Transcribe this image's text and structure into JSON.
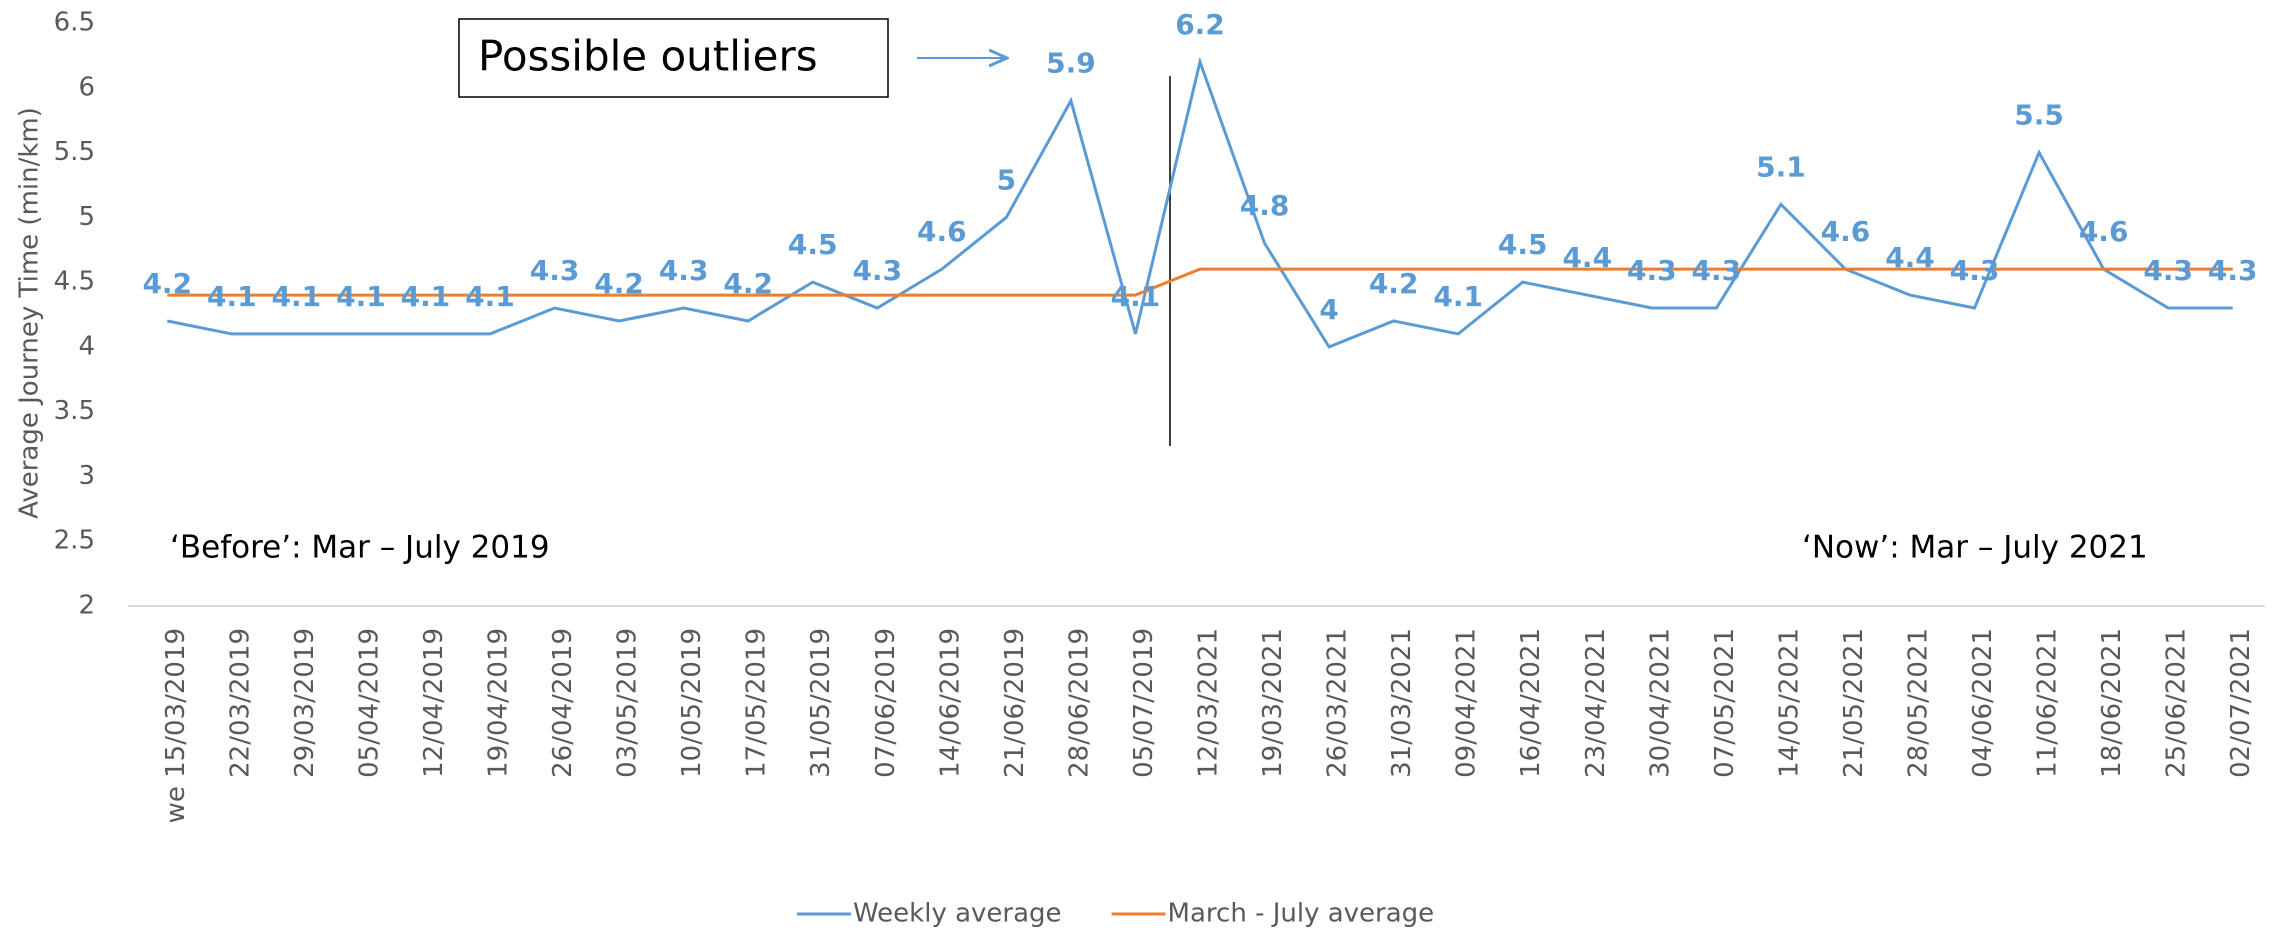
{
  "chart_data": {
    "type": "line",
    "y_label": "Average Journey Time  (min/km)",
    "categories": [
      "we 15/03/2019",
      "22/03/2019",
      "29/03/2019",
      "05/04/2019",
      "12/04/2019",
      "19/04/2019",
      "26/04/2019",
      "03/05/2019",
      "10/05/2019",
      "17/05/2019",
      "31/05/2019",
      "07/06/2019",
      "14/06/2019",
      "21/06/2019",
      "28/06/2019",
      "05/07/2019",
      "12/03/2021",
      "19/03/2021",
      "26/03/2021",
      "31/03/2021",
      "09/04/2021",
      "16/04/2021",
      "23/04/2021",
      "30/04/2021",
      "07/05/2021",
      "14/05/2021",
      "21/05/2021",
      "28/05/2021",
      "04/06/2021",
      "11/06/2021",
      "18/06/2021",
      "25/06/2021",
      "02/07/2021"
    ],
    "series": [
      {
        "name": "Weekly average",
        "color": "#5b9bd5",
        "data_labels": true,
        "values": [
          4.2,
          4.1,
          4.1,
          4.1,
          4.1,
          4.1,
          4.3,
          4.2,
          4.3,
          4.2,
          4.5,
          4.3,
          4.6,
          5,
          5.9,
          4.1,
          6.2,
          4.8,
          4,
          4.2,
          4.1,
          4.5,
          4.4,
          4.3,
          4.3,
          5.1,
          4.6,
          4.4,
          4.3,
          5.5,
          4.6,
          4.3,
          4.3
        ]
      },
      {
        "name": "March - July average",
        "color": "#ed7d31",
        "data_labels": false,
        "values": [
          4.4,
          4.4,
          4.4,
          4.4,
          4.4,
          4.4,
          4.4,
          4.4,
          4.4,
          4.4,
          4.4,
          4.4,
          4.4,
          4.4,
          4.4,
          4.4,
          4.6,
          4.6,
          4.6,
          4.6,
          4.6,
          4.6,
          4.6,
          4.6,
          4.6,
          4.6,
          4.6,
          4.6,
          4.6,
          4.6,
          4.6,
          4.6,
          4.6
        ]
      }
    ],
    "ylim": [
      2,
      6.5
    ],
    "yticks": [
      2,
      2.5,
      3,
      3.5,
      4,
      4.5,
      5,
      5.5,
      6,
      6.5
    ],
    "grid": false,
    "legend": "bottom",
    "annotations": [
      "Possible outliers",
      "‘Before’: Mar – July 2019",
      "‘Now’: Mar – July 2021"
    ]
  }
}
